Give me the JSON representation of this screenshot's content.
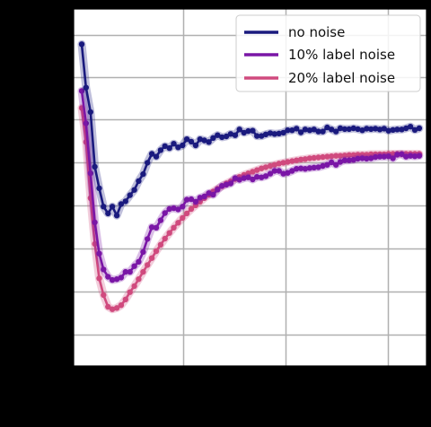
{
  "chart_data": {
    "type": "line",
    "title": "",
    "xlabel": "",
    "ylabel": "",
    "grid": true,
    "legend_position": "top-right",
    "series": [
      {
        "name": "no noise",
        "color": "#1a1a7e",
        "values": [
          [
            0.0,
            0.843
          ],
          [
            0.043,
            0.736
          ],
          [
            0.087,
            0.676
          ],
          [
            0.13,
            0.541
          ],
          [
            0.174,
            0.488
          ],
          [
            0.217,
            0.443
          ],
          [
            0.261,
            0.426
          ],
          [
            0.304,
            0.443
          ],
          [
            0.348,
            0.421
          ],
          [
            0.391,
            0.449
          ],
          [
            0.435,
            0.456
          ],
          [
            0.478,
            0.471
          ],
          [
            0.522,
            0.484
          ],
          [
            0.565,
            0.506
          ],
          [
            0.609,
            0.523
          ],
          [
            0.652,
            0.551
          ],
          [
            0.696,
            0.573
          ],
          [
            0.739,
            0.566
          ],
          [
            0.783,
            0.582
          ],
          [
            0.826,
            0.592
          ],
          [
            0.87,
            0.587
          ],
          [
            0.913,
            0.598
          ],
          [
            0.957,
            0.589
          ],
          [
            1.0,
            0.594
          ],
          [
            1.043,
            0.609
          ],
          [
            1.087,
            0.603
          ],
          [
            1.13,
            0.594
          ],
          [
            1.174,
            0.609
          ],
          [
            1.217,
            0.606
          ],
          [
            1.261,
            0.602
          ],
          [
            1.304,
            0.612
          ],
          [
            1.348,
            0.619
          ],
          [
            1.391,
            0.614
          ],
          [
            1.435,
            0.616
          ],
          [
            1.478,
            0.622
          ],
          [
            1.522,
            0.619
          ],
          [
            1.565,
            0.633
          ],
          [
            1.609,
            0.625
          ],
          [
            1.652,
            0.629
          ],
          [
            1.696,
            0.63
          ],
          [
            1.739,
            0.617
          ],
          [
            1.783,
            0.617
          ],
          [
            1.826,
            0.621
          ],
          [
            1.87,
            0.624
          ],
          [
            1.913,
            0.622
          ],
          [
            1.957,
            0.623
          ],
          [
            2.0,
            0.625
          ],
          [
            2.043,
            0.631
          ],
          [
            2.087,
            0.631
          ],
          [
            2.13,
            0.635
          ],
          [
            2.174,
            0.626
          ],
          [
            2.217,
            0.633
          ],
          [
            2.261,
            0.631
          ],
          [
            2.304,
            0.633
          ],
          [
            2.348,
            0.628
          ],
          [
            2.391,
            0.628
          ],
          [
            2.435,
            0.638
          ],
          [
            2.478,
            0.633
          ],
          [
            2.522,
            0.628
          ],
          [
            2.565,
            0.636
          ],
          [
            2.609,
            0.634
          ],
          [
            2.652,
            0.634
          ],
          [
            2.696,
            0.636
          ],
          [
            2.739,
            0.634
          ],
          [
            2.783,
            0.631
          ],
          [
            2.826,
            0.635
          ],
          [
            2.87,
            0.634
          ],
          [
            2.913,
            0.635
          ],
          [
            2.957,
            0.633
          ],
          [
            3.0,
            0.635
          ],
          [
            3.043,
            0.63
          ],
          [
            3.087,
            0.632
          ],
          [
            3.13,
            0.633
          ],
          [
            3.174,
            0.633
          ],
          [
            3.217,
            0.636
          ],
          [
            3.261,
            0.64
          ],
          [
            3.304,
            0.632
          ],
          [
            3.348,
            0.636
          ]
        ]
      },
      {
        "name": "10% label noise",
        "color": "#7a16a6",
        "values": [
          [
            0.0,
            0.728
          ],
          [
            0.043,
            0.648
          ],
          [
            0.087,
            0.525
          ],
          [
            0.13,
            0.404
          ],
          [
            0.174,
            0.327
          ],
          [
            0.217,
            0.288
          ],
          [
            0.261,
            0.27
          ],
          [
            0.304,
            0.262
          ],
          [
            0.348,
            0.264
          ],
          [
            0.391,
            0.268
          ],
          [
            0.435,
            0.282
          ],
          [
            0.478,
            0.282
          ],
          [
            0.522,
            0.296
          ],
          [
            0.565,
            0.307
          ],
          [
            0.609,
            0.331
          ],
          [
            0.652,
            0.363
          ],
          [
            0.696,
            0.392
          ],
          [
            0.739,
            0.391
          ],
          [
            0.783,
            0.409
          ],
          [
            0.826,
            0.427
          ],
          [
            0.87,
            0.437
          ],
          [
            0.913,
            0.439
          ],
          [
            0.957,
            0.436
          ],
          [
            1.0,
            0.443
          ],
          [
            1.043,
            0.46
          ],
          [
            1.087,
            0.461
          ],
          [
            1.13,
            0.455
          ],
          [
            1.174,
            0.465
          ],
          [
            1.217,
            0.468
          ],
          [
            1.261,
            0.476
          ],
          [
            1.304,
            0.472
          ],
          [
            1.348,
            0.485
          ],
          [
            1.391,
            0.494
          ],
          [
            1.435,
            0.497
          ],
          [
            1.478,
            0.5
          ],
          [
            1.522,
            0.513
          ],
          [
            1.565,
            0.509
          ],
          [
            1.609,
            0.513
          ],
          [
            1.652,
            0.515
          ],
          [
            1.696,
            0.51
          ],
          [
            1.739,
            0.516
          ],
          [
            1.783,
            0.515
          ],
          [
            1.826,
            0.518
          ],
          [
            1.87,
            0.524
          ],
          [
            1.913,
            0.531
          ],
          [
            1.957,
            0.531
          ],
          [
            2.0,
            0.524
          ],
          [
            2.043,
            0.526
          ],
          [
            2.087,
            0.531
          ],
          [
            2.13,
            0.536
          ],
          [
            2.174,
            0.537
          ],
          [
            2.217,
            0.536
          ],
          [
            2.261,
            0.538
          ],
          [
            2.304,
            0.539
          ],
          [
            2.348,
            0.54
          ],
          [
            2.391,
            0.543
          ],
          [
            2.435,
            0.546
          ],
          [
            2.478,
            0.552
          ],
          [
            2.522,
            0.546
          ],
          [
            2.565,
            0.553
          ],
          [
            2.609,
            0.557
          ],
          [
            2.652,
            0.557
          ],
          [
            2.696,
            0.558
          ],
          [
            2.739,
            0.561
          ],
          [
            2.783,
            0.562
          ],
          [
            2.826,
            0.561
          ],
          [
            2.87,
            0.562
          ],
          [
            2.913,
            0.565
          ],
          [
            2.957,
            0.566
          ],
          [
            3.0,
            0.566
          ],
          [
            3.043,
            0.567
          ],
          [
            3.087,
            0.562
          ],
          [
            3.13,
            0.571
          ],
          [
            3.174,
            0.572
          ],
          [
            3.217,
            0.566
          ],
          [
            3.261,
            0.568
          ],
          [
            3.304,
            0.567
          ],
          [
            3.348,
            0.568
          ]
        ]
      },
      {
        "name": "20% label noise",
        "color": "#d04a7e",
        "values": [
          [
            0.0,
            0.686
          ],
          [
            0.043,
            0.602
          ],
          [
            0.087,
            0.464
          ],
          [
            0.13,
            0.351
          ],
          [
            0.174,
            0.266
          ],
          [
            0.217,
            0.225
          ],
          [
            0.261,
            0.196
          ],
          [
            0.304,
            0.19
          ],
          [
            0.348,
            0.193
          ],
          [
            0.391,
            0.2
          ],
          [
            0.435,
            0.214
          ],
          [
            0.478,
            0.232
          ],
          [
            0.522,
            0.247
          ],
          [
            0.565,
            0.264
          ],
          [
            0.609,
            0.282
          ],
          [
            0.652,
            0.299
          ],
          [
            0.696,
            0.316
          ],
          [
            0.739,
            0.333
          ],
          [
            0.783,
            0.349
          ],
          [
            0.826,
            0.364
          ],
          [
            0.87,
            0.378
          ],
          [
            0.913,
            0.391
          ],
          [
            0.957,
            0.403
          ],
          [
            1.0,
            0.415
          ],
          [
            1.043,
            0.426
          ],
          [
            1.087,
            0.437
          ],
          [
            1.13,
            0.446
          ],
          [
            1.174,
            0.455
          ],
          [
            1.217,
            0.464
          ],
          [
            1.261,
            0.472
          ],
          [
            1.304,
            0.48
          ],
          [
            1.348,
            0.487
          ],
          [
            1.391,
            0.493
          ],
          [
            1.435,
            0.5
          ],
          [
            1.478,
            0.505
          ],
          [
            1.522,
            0.511
          ],
          [
            1.565,
            0.516
          ],
          [
            1.609,
            0.521
          ],
          [
            1.652,
            0.525
          ],
          [
            1.696,
            0.529
          ],
          [
            1.739,
            0.533
          ],
          [
            1.783,
            0.537
          ],
          [
            1.826,
            0.54
          ],
          [
            1.87,
            0.543
          ],
          [
            1.913,
            0.546
          ],
          [
            1.957,
            0.549
          ],
          [
            2.0,
            0.551
          ],
          [
            2.043,
            0.553
          ],
          [
            2.087,
            0.555
          ],
          [
            2.13,
            0.557
          ],
          [
            2.174,
            0.559
          ],
          [
            2.217,
            0.56
          ],
          [
            2.261,
            0.562
          ],
          [
            2.304,
            0.563
          ],
          [
            2.348,
            0.564
          ],
          [
            2.391,
            0.565
          ],
          [
            2.435,
            0.566
          ],
          [
            2.478,
            0.567
          ],
          [
            2.522,
            0.568
          ],
          [
            2.565,
            0.568
          ],
          [
            2.609,
            0.569
          ],
          [
            2.652,
            0.57
          ],
          [
            2.696,
            0.57
          ],
          [
            2.739,
            0.571
          ],
          [
            2.783,
            0.571
          ],
          [
            2.826,
            0.571
          ],
          [
            2.87,
            0.572
          ],
          [
            2.913,
            0.572
          ],
          [
            2.957,
            0.572
          ],
          [
            3.0,
            0.572
          ],
          [
            3.043,
            0.573
          ],
          [
            3.087,
            0.573
          ],
          [
            3.13,
            0.573
          ],
          [
            3.174,
            0.573
          ],
          [
            3.217,
            0.573
          ],
          [
            3.261,
            0.573
          ],
          [
            3.304,
            0.573
          ],
          [
            3.348,
            0.573
          ]
        ]
      }
    ]
  }
}
